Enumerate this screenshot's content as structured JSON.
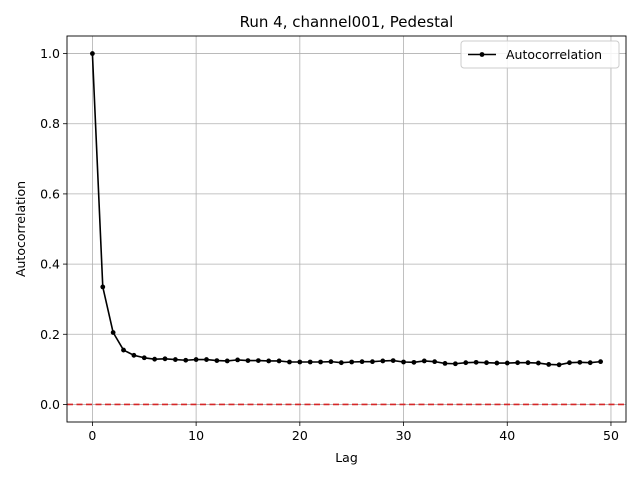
{
  "chart_data": {
    "type": "line",
    "title": "Run 4, channel001, Pedestal",
    "xlabel": "Lag",
    "ylabel": "Autocorrelation",
    "xlim": [
      -2.45,
      51.45
    ],
    "ylim": [
      -0.05,
      1.05
    ],
    "xticks": [
      0,
      10,
      20,
      30,
      40,
      50
    ],
    "yticks": [
      0.0,
      0.2,
      0.4,
      0.6,
      0.8,
      1.0
    ],
    "grid": true,
    "legend": "top-right",
    "series": [
      {
        "name": "Autocorrelation",
        "color": "#000000",
        "marker": "circle",
        "x": [
          0,
          1,
          2,
          3,
          4,
          5,
          6,
          7,
          8,
          9,
          10,
          11,
          12,
          13,
          14,
          15,
          16,
          17,
          18,
          19,
          20,
          21,
          22,
          23,
          24,
          25,
          26,
          27,
          28,
          29,
          30,
          31,
          32,
          33,
          34,
          35,
          36,
          37,
          38,
          39,
          40,
          41,
          42,
          43,
          44,
          45,
          46,
          47,
          48,
          49
        ],
        "y": [
          1.0,
          0.335,
          0.205,
          0.155,
          0.14,
          0.133,
          0.129,
          0.13,
          0.128,
          0.126,
          0.128,
          0.128,
          0.125,
          0.124,
          0.127,
          0.125,
          0.125,
          0.124,
          0.124,
          0.121,
          0.121,
          0.121,
          0.121,
          0.122,
          0.119,
          0.121,
          0.122,
          0.122,
          0.124,
          0.125,
          0.121,
          0.12,
          0.124,
          0.122,
          0.117,
          0.116,
          0.119,
          0.12,
          0.119,
          0.118,
          0.118,
          0.119,
          0.119,
          0.118,
          0.114,
          0.113,
          0.119,
          0.12,
          0.119,
          0.122
        ]
      }
    ],
    "reference_line": {
      "y": 0.0,
      "color": "#d62728",
      "style": "dashed"
    }
  }
}
